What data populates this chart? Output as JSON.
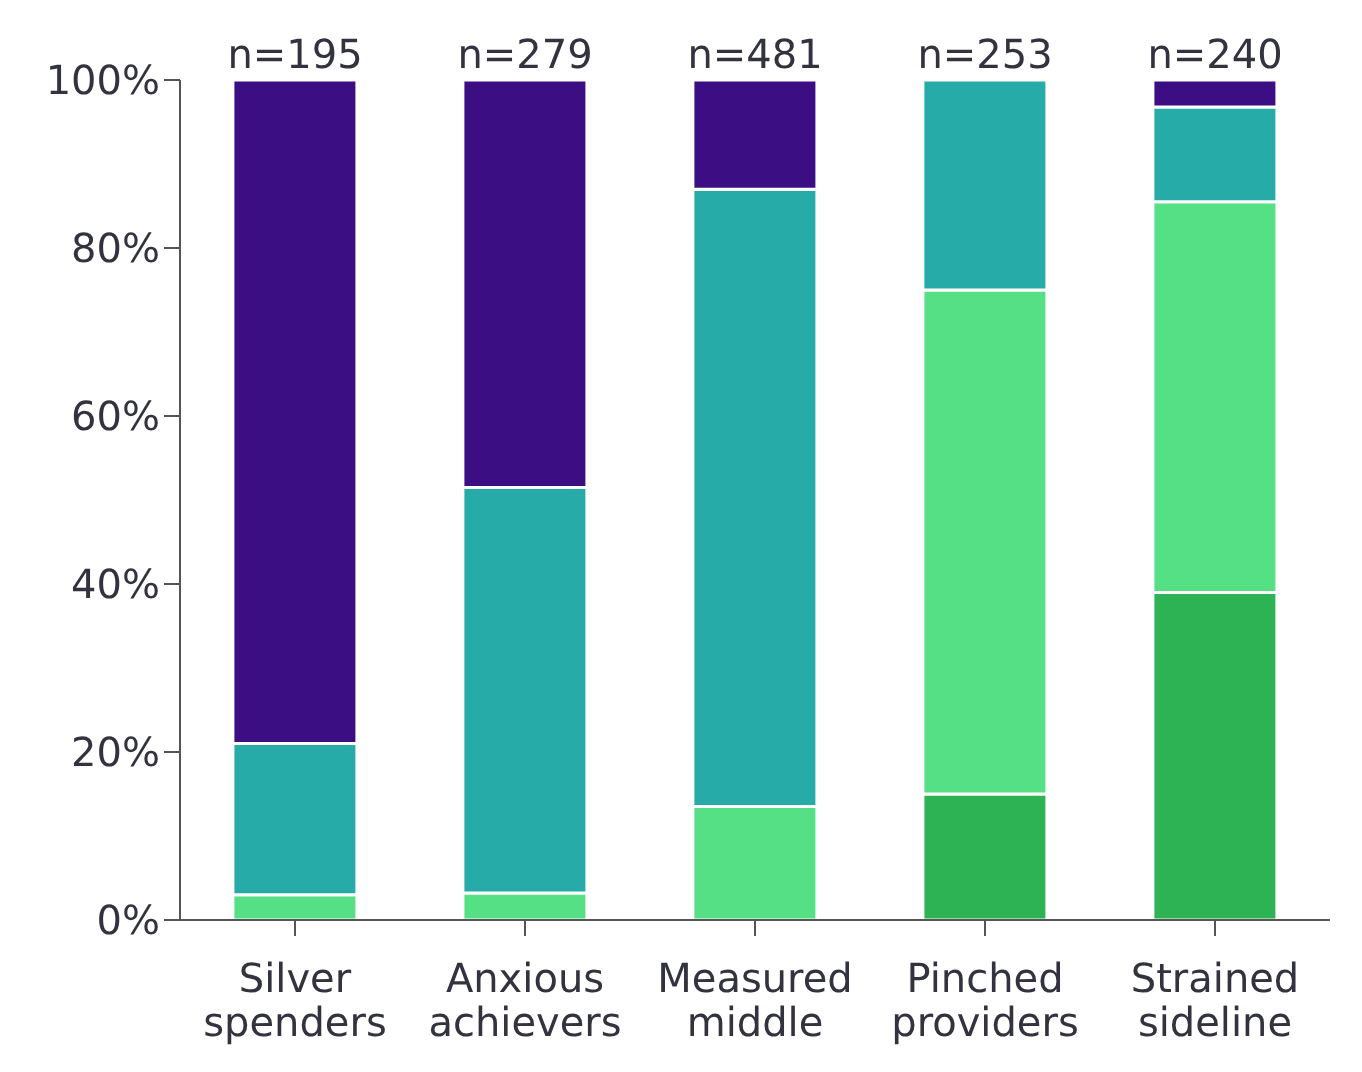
{
  "chart_data": {
    "type": "bar",
    "stacked": true,
    "categories": [
      "Silver spenders",
      "Anxious achievers",
      "Measured middle",
      "Pinched providers",
      "Strained sideline"
    ],
    "series": [
      {
        "color": "#2db354",
        "values": [
          0,
          null,
          null,
          15,
          39
        ]
      },
      {
        "color": "#56e086",
        "values": [
          3,
          3.2,
          13.5,
          60,
          46.5
        ]
      },
      {
        "color": "#27aba8",
        "values": [
          18,
          48.3,
          73.5,
          25,
          11.3
        ]
      },
      {
        "color": "#3c0e83",
        "values": [
          79,
          48.5,
          13,
          0,
          3.2
        ]
      }
    ],
    "ylim": [
      0,
      100
    ],
    "yticks": [
      {
        "value": 0,
        "label": "0%"
      },
      {
        "value": 20,
        "label": "20%"
      },
      {
        "value": 40,
        "label": "40%"
      },
      {
        "value": 60,
        "label": "60%"
      },
      {
        "value": 80,
        "label": "80%"
      },
      {
        "value": 100,
        "label": "100%"
      }
    ],
    "grid": false,
    "legend": false,
    "annotations": [
      {
        "text": "n=195",
        "x": "Silver spenders",
        "y": 100
      },
      {
        "text": "n=279",
        "x": "Anxious achievers",
        "y": 100
      },
      {
        "text": "n=481",
        "x": "Measured middle",
        "y": 100
      },
      {
        "text": "n=253",
        "x": "Pinched providers",
        "y": 100
      },
      {
        "text": "n=240",
        "x": "Strained sideline",
        "y": 100
      }
    ]
  }
}
